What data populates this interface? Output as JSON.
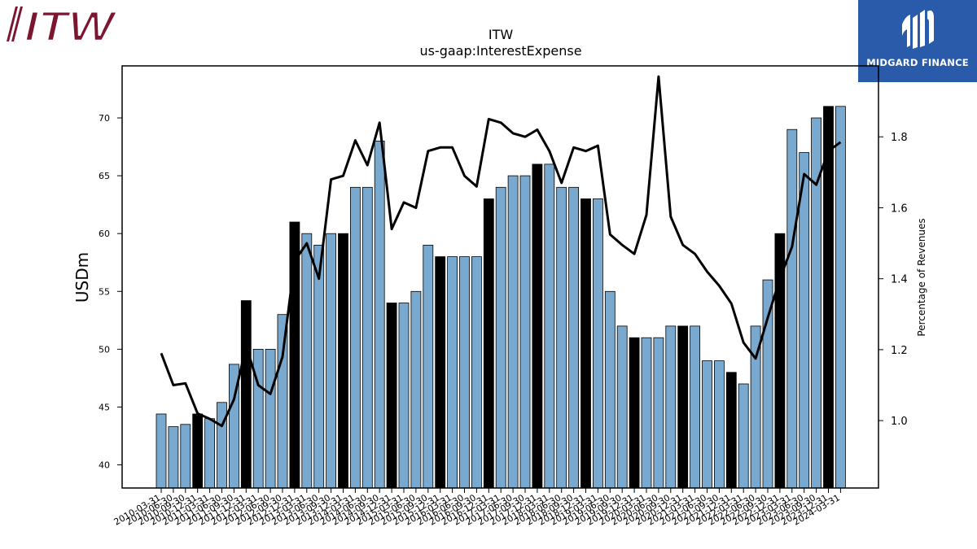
{
  "logos": {
    "left": {
      "text": "ITW",
      "color": "#7b1530"
    },
    "right": {
      "text": "MIDGARD FINANCE",
      "color": "#2a5bab"
    }
  },
  "chart_data": {
    "type": "bar",
    "title": "ITW",
    "subtitle": "us-gaap:InterestExpense",
    "ylabel": "USDm",
    "y2label": "Percentage of Revenues",
    "ylim": [
      38,
      74.5
    ],
    "y2lim": [
      0.81,
      2.0
    ],
    "yticks": [
      40,
      45,
      50,
      55,
      60,
      65,
      70
    ],
    "y2ticks": [
      1.0,
      1.2,
      1.4,
      1.6,
      1.8
    ],
    "colors": {
      "bar": "#7aa9cf",
      "highlight": "#000000",
      "line": "#000000"
    },
    "categories": [
      "2010-03-31",
      "2010-06-30",
      "2010-09-30",
      "2010-12-31",
      "2011-03-31",
      "2011-06-30",
      "2011-09-30",
      "2011-12-31",
      "2012-03-31",
      "2012-06-30",
      "2012-09-30",
      "2012-12-31",
      "2013-03-31",
      "2013-06-30",
      "2013-09-30",
      "2013-12-31",
      "2014-03-31",
      "2014-06-30",
      "2014-09-30",
      "2014-12-31",
      "2015-03-31",
      "2015-06-30",
      "2015-09-30",
      "2015-12-31",
      "2016-03-31",
      "2016-06-30",
      "2016-09-30",
      "2016-12-31",
      "2017-03-31",
      "2017-06-30",
      "2017-09-30",
      "2017-12-31",
      "2018-03-31",
      "2018-06-30",
      "2018-09-30",
      "2018-12-31",
      "2019-03-31",
      "2019-06-30",
      "2019-09-30",
      "2019-12-31",
      "2020-03-31",
      "2020-06-30",
      "2020-09-30",
      "2020-12-31",
      "2021-03-31",
      "2021-06-30",
      "2021-09-30",
      "2021-12-31",
      "2022-03-31",
      "2022-06-30",
      "2022-09-30",
      "2022-12-31",
      "2023-03-31",
      "2023-06-30",
      "2023-09-30",
      "2023-12-31",
      "2024-03-31"
    ],
    "series": [
      {
        "type": "bar",
        "values": [
          44.4,
          43.3,
          43.5,
          44.4,
          44,
          45.4,
          48.7,
          54.2,
          50,
          50,
          53,
          61,
          60,
          59,
          60,
          60,
          64,
          64,
          68,
          54,
          54,
          55,
          59,
          58,
          58,
          58,
          58,
          63,
          64,
          65,
          65,
          66,
          66,
          64,
          64,
          63,
          63,
          55,
          52,
          51,
          51,
          51,
          52,
          52,
          52,
          49,
          49,
          48,
          47,
          52,
          56,
          60,
          69,
          67,
          70,
          71,
          71
        ],
        "highlight": [
          false,
          false,
          false,
          true,
          false,
          false,
          false,
          true,
          false,
          false,
          false,
          true,
          false,
          false,
          false,
          true,
          false,
          false,
          false,
          true,
          false,
          false,
          false,
          true,
          false,
          false,
          false,
          true,
          false,
          false,
          false,
          true,
          false,
          false,
          false,
          true,
          false,
          false,
          false,
          true,
          false,
          false,
          false,
          true,
          false,
          false,
          false,
          true,
          false,
          false,
          false,
          true,
          false,
          false,
          false,
          true,
          false
        ]
      },
      {
        "type": "line",
        "axis": "right",
        "values": [
          1.19,
          1.1,
          1.105,
          1.02,
          1.005,
          0.985,
          1.06,
          1.21,
          1.1,
          1.075,
          1.18,
          1.45,
          1.5,
          1.4,
          1.68,
          1.69,
          1.79,
          1.72,
          1.84,
          1.54,
          1.615,
          1.6,
          1.76,
          1.77,
          1.77,
          1.69,
          1.66,
          1.85,
          1.84,
          1.81,
          1.8,
          1.82,
          1.76,
          1.67,
          1.77,
          1.76,
          1.775,
          1.525,
          1.495,
          1.47,
          1.58,
          1.97,
          1.575,
          1.495,
          1.47,
          1.42,
          1.38,
          1.33,
          1.22,
          1.175,
          1.29,
          1.4,
          1.49,
          1.695,
          1.665,
          1.76,
          1.785
        ]
      }
    ],
    "grid": false,
    "legend": "none"
  }
}
